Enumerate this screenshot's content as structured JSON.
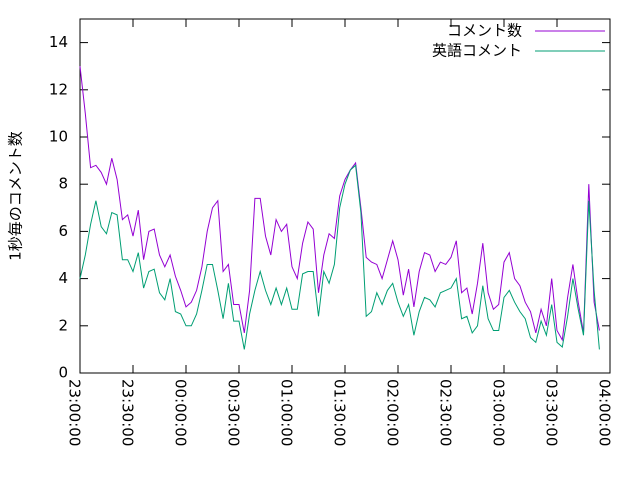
{
  "chart_data": {
    "type": "line",
    "ylabel": "1秒毎のコメント数",
    "x": [
      "23:00:00",
      "23:03:00",
      "23:06:00",
      "23:09:00",
      "23:12:00",
      "23:15:00",
      "23:18:00",
      "23:21:00",
      "23:24:00",
      "23:27:00",
      "23:30:00",
      "23:33:00",
      "23:36:00",
      "23:39:00",
      "23:42:00",
      "23:45:00",
      "23:48:00",
      "23:51:00",
      "23:54:00",
      "23:57:00",
      "00:00:00",
      "00:03:00",
      "00:06:00",
      "00:09:00",
      "00:12:00",
      "00:15:00",
      "00:18:00",
      "00:21:00",
      "00:24:00",
      "00:27:00",
      "00:30:00",
      "00:33:00",
      "00:36:00",
      "00:39:00",
      "00:42:00",
      "00:45:00",
      "00:48:00",
      "00:51:00",
      "00:54:00",
      "00:57:00",
      "01:00:00",
      "01:03:00",
      "01:06:00",
      "01:09:00",
      "01:12:00",
      "01:15:00",
      "01:18:00",
      "01:21:00",
      "01:24:00",
      "01:27:00",
      "01:30:00",
      "01:33:00",
      "01:36:00",
      "01:39:00",
      "01:42:00",
      "01:45:00",
      "01:48:00",
      "01:51:00",
      "01:54:00",
      "01:57:00",
      "02:00:00",
      "02:03:00",
      "02:06:00",
      "02:09:00",
      "02:12:00",
      "02:15:00",
      "02:18:00",
      "02:21:00",
      "02:24:00",
      "02:27:00",
      "02:30:00",
      "02:33:00",
      "02:36:00",
      "02:39:00",
      "02:42:00",
      "02:45:00",
      "02:48:00",
      "02:51:00",
      "02:54:00",
      "02:57:00",
      "03:00:00",
      "03:03:00",
      "03:06:00",
      "03:09:00",
      "03:12:00",
      "03:15:00",
      "03:18:00",
      "03:21:00",
      "03:24:00",
      "03:27:00",
      "03:30:00",
      "03:33:00",
      "03:36:00",
      "03:39:00",
      "03:42:00",
      "03:45:00",
      "03:48:00",
      "03:51:00",
      "03:54:00"
    ],
    "series": [
      {
        "name": "コメント数",
        "color": "#9400d3",
        "values": [
          13.0,
          11,
          8.7,
          8.8,
          8.5,
          8.0,
          9.1,
          8.2,
          6.5,
          6.7,
          5.8,
          6.9,
          4.8,
          6.0,
          6.1,
          5.0,
          4.5,
          5.0,
          4.1,
          3.5,
          2.8,
          3.0,
          3.5,
          4.5,
          6.0,
          7.0,
          7.3,
          4.3,
          4.6,
          2.9,
          2.9,
          1.7,
          3.5,
          7.4,
          7.4,
          5.8,
          5.0,
          6.5,
          6.0,
          6.3,
          4.5,
          4.0,
          5.5,
          6.4,
          6.1,
          3.4,
          5.0,
          5.9,
          5.7,
          7.5,
          8.2,
          8.6,
          8.9,
          7.0,
          4.9,
          4.7,
          4.6,
          4.0,
          4.8,
          5.6,
          4.8,
          3.3,
          4.4,
          2.8,
          4.3,
          5.1,
          5.0,
          4.3,
          4.7,
          4.6,
          4.9,
          5.6,
          3.4,
          3.6,
          2.5,
          3.8,
          5.5,
          3.4,
          2.7,
          2.9,
          4.7,
          5.1,
          4.0,
          3.7,
          3.0,
          2.6,
          1.7,
          2.7,
          2.0,
          4.0,
          1.8,
          1.4,
          3.2,
          4.6,
          3.0,
          1.7,
          8.0,
          3.0,
          1.8
        ]
      },
      {
        "name": "英語コメント",
        "color": "#009e73",
        "values": [
          4.0,
          5.0,
          6.3,
          7.3,
          6.2,
          5.9,
          6.8,
          6.7,
          4.8,
          4.8,
          4.3,
          5.1,
          3.6,
          4.3,
          4.4,
          3.4,
          3.1,
          4.0,
          2.6,
          2.5,
          2.0,
          2.0,
          2.5,
          3.5,
          4.6,
          4.6,
          3.5,
          2.3,
          3.8,
          2.2,
          2.2,
          1.0,
          2.5,
          3.5,
          4.3,
          3.5,
          2.9,
          3.6,
          2.9,
          3.6,
          2.7,
          2.7,
          4.2,
          4.3,
          4.3,
          2.4,
          4.3,
          3.8,
          4.6,
          7.0,
          8.0,
          8.6,
          8.8,
          6.8,
          2.4,
          2.6,
          3.4,
          2.9,
          3.5,
          3.8,
          3.0,
          2.4,
          2.9,
          1.6,
          2.6,
          3.2,
          3.1,
          2.8,
          3.4,
          3.5,
          3.6,
          4.0,
          2.3,
          2.4,
          1.7,
          2.0,
          3.7,
          2.3,
          1.8,
          1.8,
          3.2,
          3.5,
          3.0,
          2.6,
          2.3,
          1.5,
          1.3,
          2.2,
          1.6,
          2.9,
          1.3,
          1.1,
          2.4,
          4.0,
          2.7,
          1.6,
          7.3,
          3.5,
          1.0
        ]
      }
    ],
    "xlim": [
      "23:00:00",
      "04:00:00"
    ],
    "xticks": [
      "23:00:00",
      "23:30:00",
      "00:00:00",
      "00:30:00",
      "01:00:00",
      "01:30:00",
      "02:00:00",
      "02:30:00",
      "03:00:00",
      "03:30:00",
      "04:00:00"
    ],
    "ylim": [
      0,
      15
    ],
    "yticks": [
      0,
      2,
      4,
      6,
      8,
      10,
      12,
      14
    ],
    "legend": "top-right"
  }
}
